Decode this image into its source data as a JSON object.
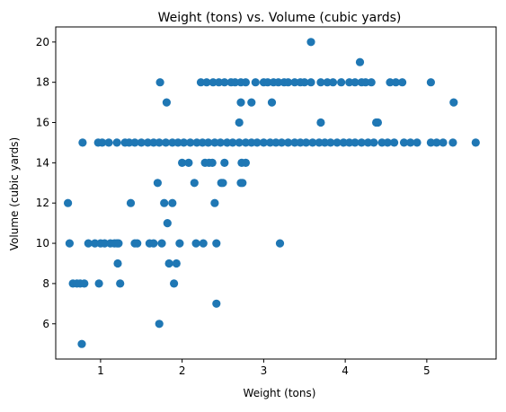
{
  "chart_data": {
    "type": "scatter",
    "title": "Weight (tons) vs. Volume (cubic yards)",
    "xlabel": "Weight (tons)",
    "ylabel": "Volume (cubic yards)",
    "xlim": [
      0.45,
      5.85
    ],
    "ylim": [
      4.25,
      20.75
    ],
    "xticks": [
      1,
      2,
      3,
      4,
      5
    ],
    "yticks": [
      6,
      8,
      10,
      12,
      14,
      16,
      18,
      20
    ],
    "grid": false,
    "legend": "none",
    "marker_color": "#1f77b4",
    "series": [
      {
        "points": [
          [
            0.6,
            12
          ],
          [
            0.62,
            10
          ],
          [
            0.66,
            8
          ],
          [
            0.71,
            8
          ],
          [
            0.75,
            8
          ],
          [
            0.8,
            8
          ],
          [
            0.77,
            5
          ],
          [
            0.78,
            15
          ],
          [
            0.85,
            10
          ],
          [
            0.93,
            10
          ],
          [
            0.97,
            15
          ],
          [
            1.0,
            10
          ],
          [
            1.02,
            15
          ],
          [
            1.05,
            10
          ],
          [
            1.12,
            10
          ],
          [
            1.17,
            10
          ],
          [
            1.2,
            10
          ],
          [
            1.22,
            10
          ],
          [
            1.21,
            9
          ],
          [
            1.24,
            8
          ],
          [
            0.98,
            8
          ],
          [
            1.37,
            12
          ],
          [
            1.42,
            10
          ],
          [
            1.45,
            10
          ],
          [
            1.6,
            10
          ],
          [
            1.65,
            10
          ],
          [
            1.7,
            13
          ],
          [
            1.73,
            18
          ],
          [
            1.72,
            6
          ],
          [
            1.75,
            10
          ],
          [
            1.78,
            12
          ],
          [
            1.81,
            17
          ],
          [
            1.82,
            11
          ],
          [
            1.84,
            9
          ],
          [
            1.88,
            12
          ],
          [
            1.9,
            8
          ],
          [
            1.93,
            9
          ],
          [
            1.97,
            10
          ],
          [
            2.0,
            14
          ],
          [
            2.08,
            14
          ],
          [
            2.15,
            13
          ],
          [
            2.17,
            10
          ],
          [
            2.23,
            18
          ],
          [
            2.26,
            10
          ],
          [
            2.28,
            14
          ],
          [
            2.33,
            14
          ],
          [
            2.37,
            14
          ],
          [
            2.4,
            12
          ],
          [
            2.42,
            7
          ],
          [
            2.42,
            10
          ],
          [
            2.48,
            13
          ],
          [
            2.5,
            13
          ],
          [
            2.52,
            14
          ],
          [
            2.7,
            16
          ],
          [
            2.72,
            13
          ],
          [
            2.74,
            13
          ],
          [
            2.73,
            14
          ],
          [
            2.78,
            14
          ],
          [
            2.72,
            17
          ],
          [
            2.85,
            17
          ],
          [
            3.1,
            17
          ],
          [
            3.2,
            10
          ],
          [
            3.58,
            20
          ],
          [
            3.7,
            16
          ],
          [
            4.18,
            19
          ],
          [
            4.38,
            16
          ],
          [
            4.4,
            16
          ],
          [
            5.05,
            18
          ],
          [
            5.33,
            17
          ],
          [
            5.6,
            15
          ],
          [
            1.1,
            15
          ],
          [
            1.2,
            15
          ],
          [
            1.3,
            15
          ],
          [
            1.35,
            15
          ],
          [
            1.42,
            15
          ],
          [
            1.5,
            15
          ],
          [
            1.58,
            15
          ],
          [
            1.65,
            15
          ],
          [
            1.72,
            15
          ],
          [
            1.8,
            15
          ],
          [
            1.88,
            15
          ],
          [
            1.95,
            15
          ],
          [
            2.02,
            15
          ],
          [
            2.1,
            15
          ],
          [
            2.18,
            15
          ],
          [
            2.25,
            15
          ],
          [
            2.32,
            15
          ],
          [
            2.4,
            15
          ],
          [
            2.47,
            15
          ],
          [
            2.55,
            15
          ],
          [
            2.62,
            15
          ],
          [
            2.7,
            15
          ],
          [
            2.78,
            15
          ],
          [
            2.85,
            15
          ],
          [
            2.92,
            15
          ],
          [
            3.0,
            15
          ],
          [
            3.08,
            15
          ],
          [
            3.15,
            15
          ],
          [
            3.22,
            15
          ],
          [
            3.3,
            15
          ],
          [
            3.38,
            15
          ],
          [
            3.45,
            15
          ],
          [
            3.52,
            15
          ],
          [
            3.6,
            15
          ],
          [
            3.68,
            15
          ],
          [
            3.75,
            15
          ],
          [
            3.82,
            15
          ],
          [
            3.9,
            15
          ],
          [
            3.98,
            15
          ],
          [
            4.05,
            15
          ],
          [
            4.12,
            15
          ],
          [
            4.2,
            15
          ],
          [
            4.28,
            15
          ],
          [
            4.35,
            15
          ],
          [
            4.45,
            15
          ],
          [
            4.52,
            15
          ],
          [
            4.6,
            15
          ],
          [
            4.72,
            15
          ],
          [
            4.8,
            15
          ],
          [
            4.88,
            15
          ],
          [
            5.05,
            15
          ],
          [
            5.12,
            15
          ],
          [
            5.2,
            15
          ],
          [
            5.32,
            15
          ],
          [
            2.3,
            18
          ],
          [
            2.38,
            18
          ],
          [
            2.45,
            18
          ],
          [
            2.52,
            18
          ],
          [
            2.6,
            18
          ],
          [
            2.65,
            18
          ],
          [
            2.72,
            18
          ],
          [
            2.78,
            18
          ],
          [
            2.9,
            18
          ],
          [
            3.0,
            18
          ],
          [
            3.05,
            18
          ],
          [
            3.12,
            18
          ],
          [
            3.18,
            18
          ],
          [
            3.25,
            18
          ],
          [
            3.3,
            18
          ],
          [
            3.38,
            18
          ],
          [
            3.45,
            18
          ],
          [
            3.5,
            18
          ],
          [
            3.58,
            18
          ],
          [
            3.7,
            18
          ],
          [
            3.78,
            18
          ],
          [
            3.85,
            18
          ],
          [
            3.95,
            18
          ],
          [
            4.05,
            18
          ],
          [
            4.12,
            18
          ],
          [
            4.2,
            18
          ],
          [
            4.25,
            18
          ],
          [
            4.32,
            18
          ],
          [
            4.55,
            18
          ],
          [
            4.62,
            18
          ],
          [
            4.7,
            18
          ]
        ]
      }
    ]
  }
}
